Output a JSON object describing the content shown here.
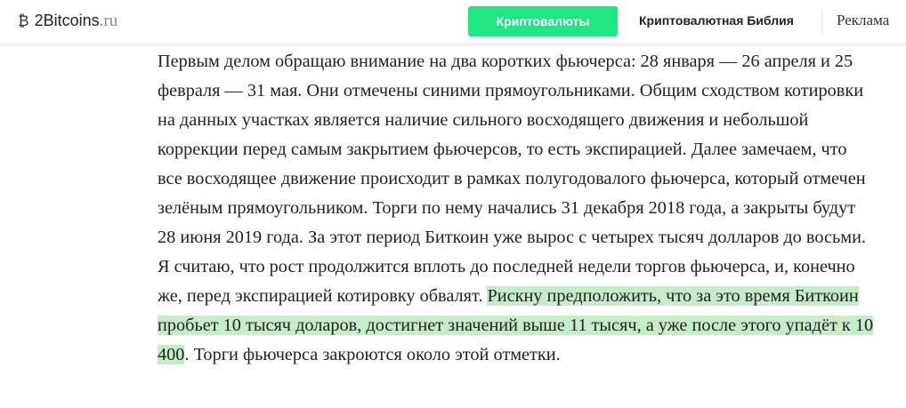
{
  "header": {
    "logo_main": "2Bitcoins",
    "logo_suffix": ".ru",
    "logo_icon": "bitcoin-icon",
    "crypto_button": "Криптовалюты",
    "bible_link": "Криптовалютная Библия",
    "ads_link": "Реклама",
    "accent_color": "#1ee682"
  },
  "article": {
    "text_before": "Первым делом обращаю внимание на два коротких фьючерса: 28 января — 26 апреля и 25 февраля — 31 мая. Они отмечены синими прямоугольниками. Общим сходством котировки на данных участках является наличие сильного восходящего движения и небольшой коррекции перед самым закрытием фьючерсов, то есть экспирацией. Далее замечаем, что все восходящее движение происходит в рамках полугодовалого фьючерса, который отмечен зелёным прямоугольником. Торги по нему начались 31 декабря 2018 года, а закрыты будут 28 июня 2019 года. За этот период Биткоин уже вырос с четырех тысяч долларов до восьми. Я считаю, что рост продолжится вплоть до последней недели торгов фьючерса, и, конечно же, перед экспирацией котировку обвалят. ",
    "text_highlighted": "Рискну предположить, что за это время Биткоин пробьет 10 тысяч доларов, достигнет значений выше 11 тысяч, а уже после этого упадёт к 10 400",
    "text_after": ". Торги фьючерса закроются около этой отметки.",
    "highlight_color": "#c6ecc8"
  }
}
